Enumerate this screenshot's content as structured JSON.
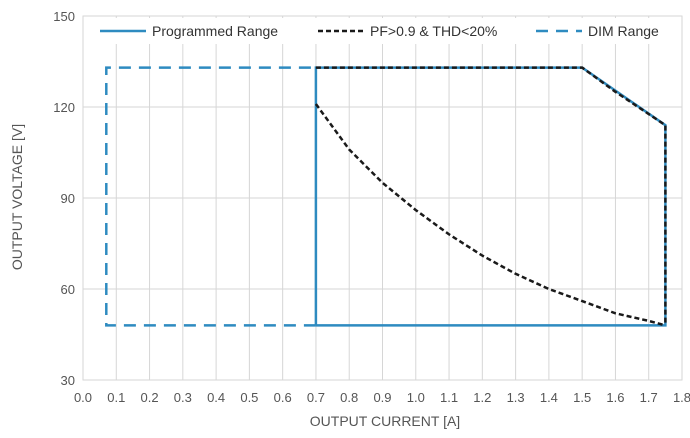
{
  "chart_data": {
    "type": "line",
    "title": "",
    "xlabel": "OUTPUT CURRENT [A]",
    "ylabel": "OUTPUT VOLTAGE [V]",
    "xlim": [
      0.0,
      1.8
    ],
    "ylim": [
      30,
      150
    ],
    "xticks": [
      "0.0",
      "0.1",
      "0.2",
      "0.3",
      "0.4",
      "0.5",
      "0.6",
      "0.7",
      "0.8",
      "0.9",
      "1.0",
      "1.1",
      "1.2",
      "1.3",
      "1.4",
      "1.5",
      "1.6",
      "1.7",
      "1.8"
    ],
    "yticks": [
      "30",
      "60",
      "90",
      "120",
      "150"
    ],
    "grid": true,
    "legend_position": "top",
    "series": [
      {
        "name": "Programmed Range",
        "style": "solid",
        "color": "#2e8bc0",
        "x": [
          0.7,
          0.7,
          1.75,
          1.75
        ],
        "y": [
          48,
          133,
          114,
          48
        ],
        "closed": true,
        "polygon": [
          [
            0.7,
            48
          ],
          [
            0.7,
            133
          ],
          [
            1.5,
            133
          ],
          [
            1.75,
            114
          ],
          [
            1.75,
            48
          ],
          [
            0.7,
            48
          ]
        ]
      },
      {
        "name": "PF>0.9 & THD<20%",
        "style": "dotted",
        "color": "#1a1a1a",
        "upper": [
          [
            0.7,
            133
          ],
          [
            1.5,
            133
          ],
          [
            1.6,
            125
          ],
          [
            1.75,
            114
          ],
          [
            1.75,
            48
          ]
        ],
        "curve": [
          [
            0.7,
            121
          ],
          [
            0.8,
            106
          ],
          [
            0.9,
            95
          ],
          [
            1.0,
            86
          ],
          [
            1.1,
            78
          ],
          [
            1.2,
            71
          ],
          [
            1.3,
            65
          ],
          [
            1.4,
            60
          ],
          [
            1.5,
            56
          ],
          [
            1.6,
            52
          ],
          [
            1.7,
            49.5
          ],
          [
            1.75,
            48
          ]
        ]
      },
      {
        "name": "DIM Range",
        "style": "dashed",
        "color": "#2e8bc0",
        "polygon": [
          [
            0.7,
            48
          ],
          [
            0.07,
            48
          ],
          [
            0.07,
            133
          ],
          [
            0.7,
            133
          ]
        ]
      }
    ]
  }
}
